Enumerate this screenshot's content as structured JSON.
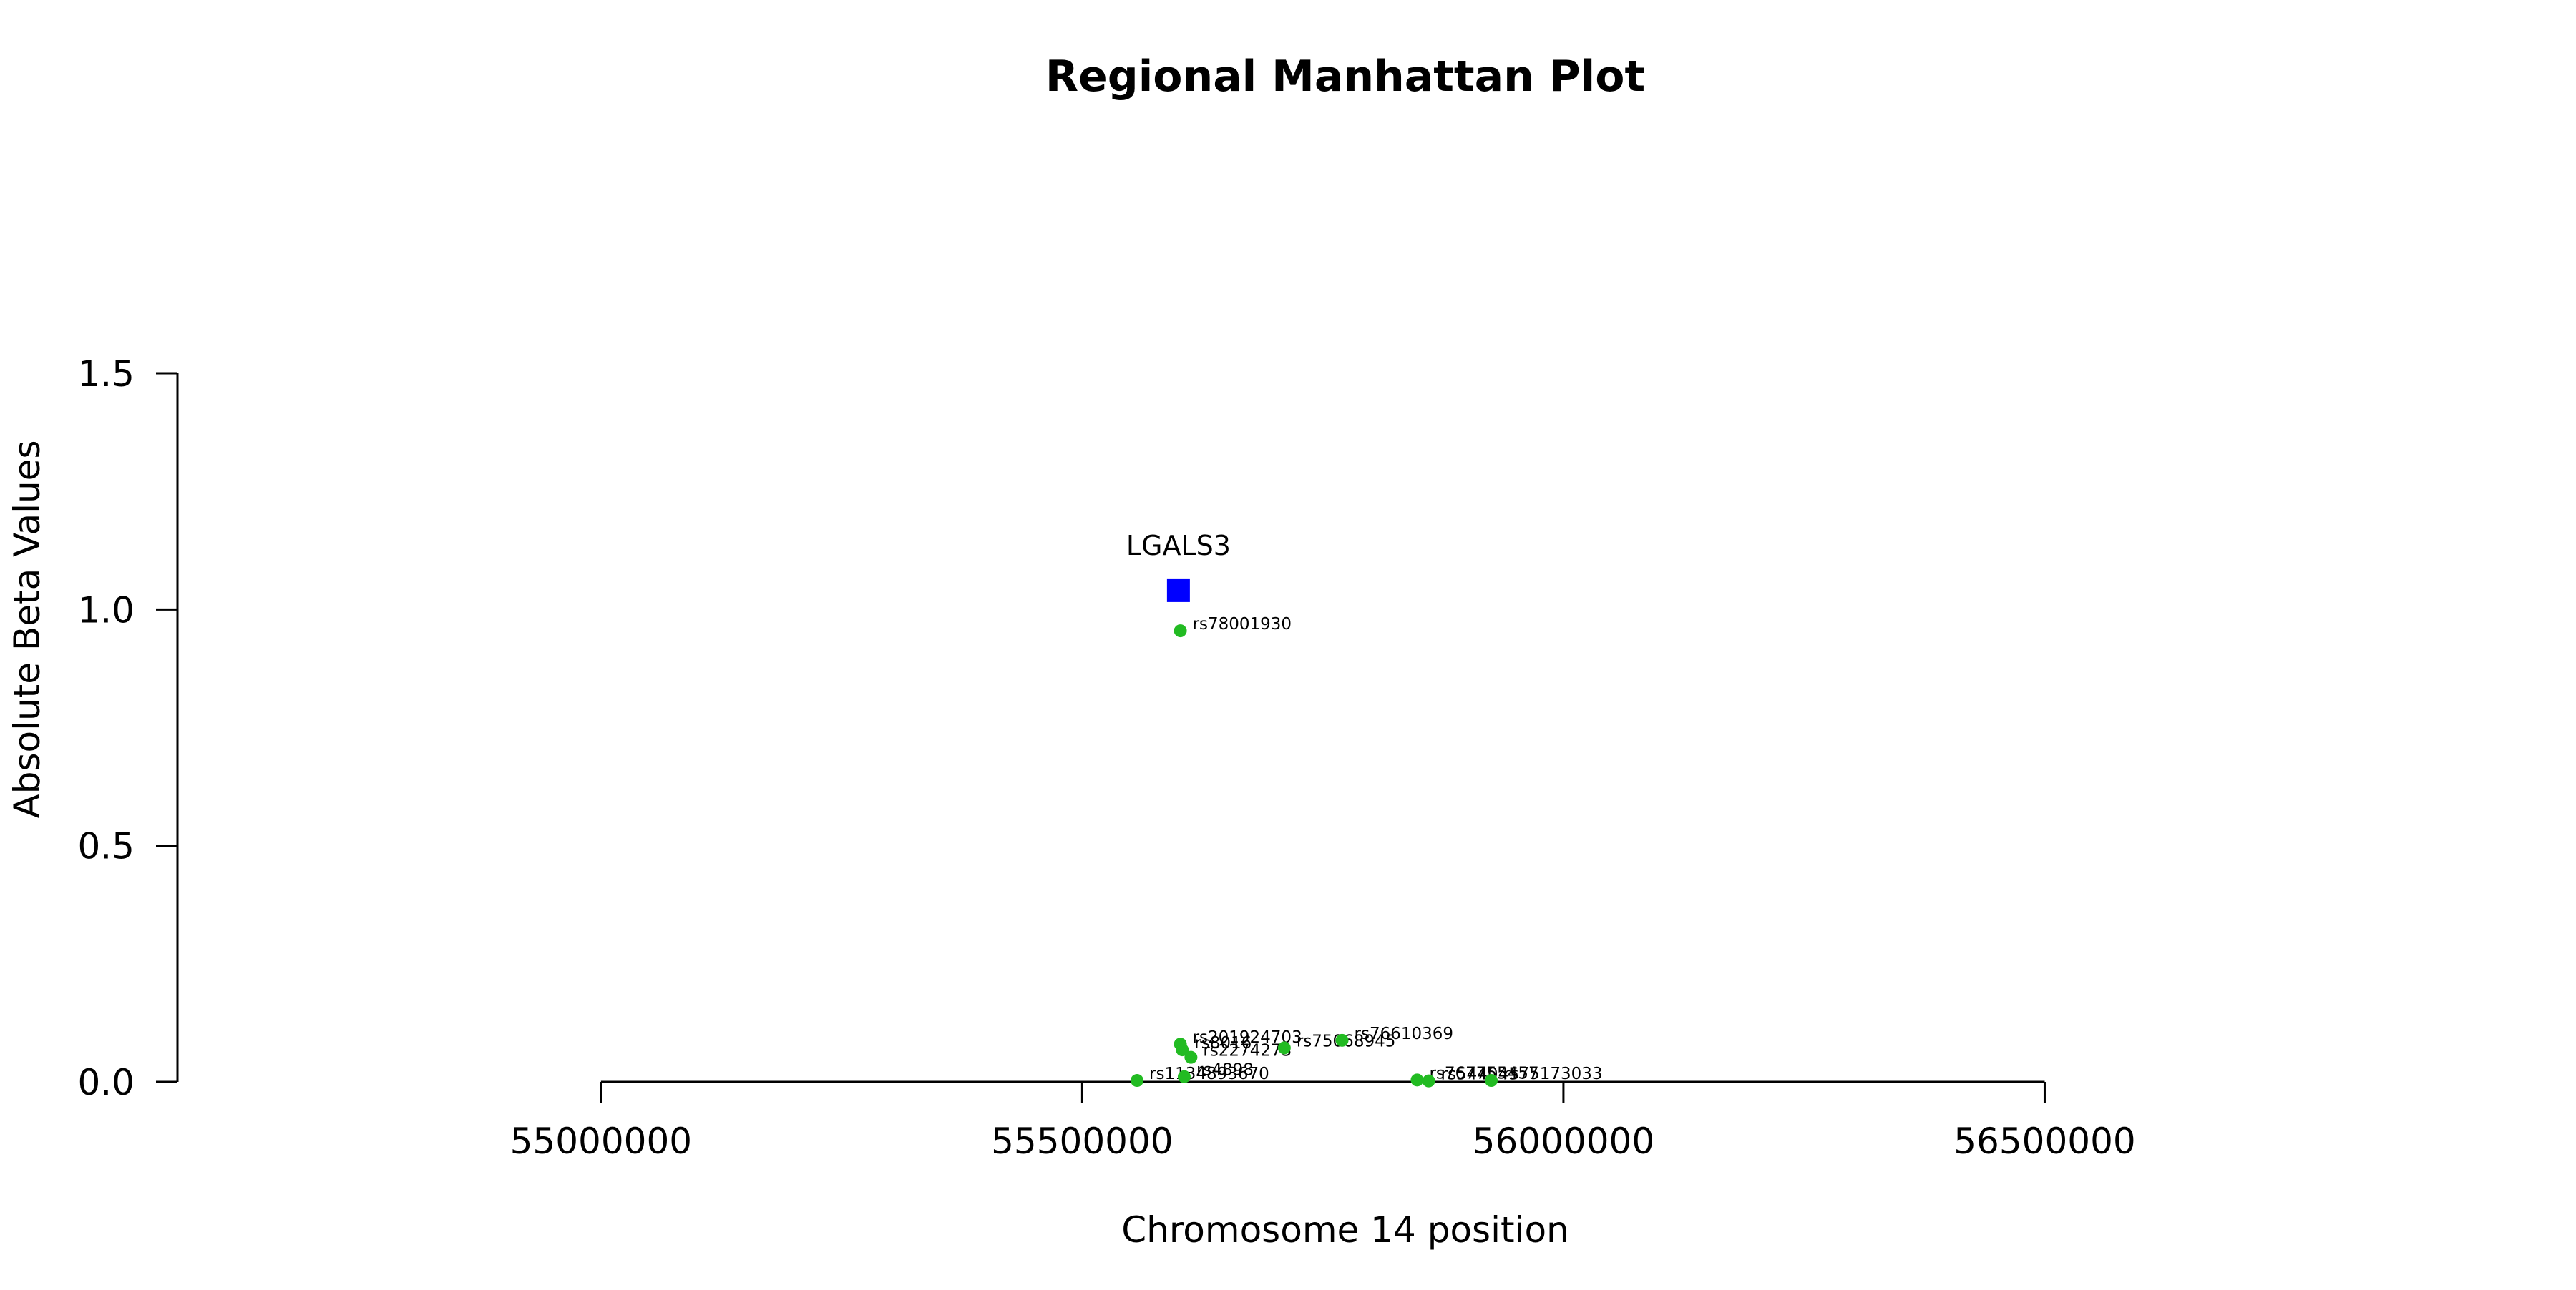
{
  "chart_data": {
    "type": "scatter",
    "title": "Regional Manhattan Plot",
    "xlabel": "Chromosome 14 position",
    "ylabel": "Absolute Beta Values",
    "xlim": [
      54560000,
      57000000
    ],
    "ylim": [
      0,
      1.5
    ],
    "x_axis_range": [
      55000000,
      56500000
    ],
    "xticks": [
      55000000,
      55500000,
      56000000,
      56500000
    ],
    "xtick_labels": [
      "55000000",
      "55500000",
      "56000000",
      "56500000"
    ],
    "yticks": [
      0,
      0.5,
      1.0,
      1.5
    ],
    "ytick_labels": [
      "0.0",
      "0.5",
      "1.0",
      "1.5"
    ],
    "grid": false,
    "colors": {
      "gene": "#0000ff",
      "snp": "#22bb22",
      "axis": "#000000"
    },
    "gene": {
      "name": "LGALS3",
      "x": 55600000,
      "y": 1.04,
      "marker": "square"
    },
    "snps": [
      {
        "label": "rs78001930",
        "x": 55602000,
        "y": 0.955
      },
      {
        "label": "rs201924703",
        "x": 55602000,
        "y": 0.08
      },
      {
        "label": "rs8016",
        "x": 55604000,
        "y": 0.068
      },
      {
        "label": "rs2274273",
        "x": 55613000,
        "y": 0.052
      },
      {
        "label": "rs75068945",
        "x": 55710000,
        "y": 0.072
      },
      {
        "label": "rs76610369",
        "x": 55770000,
        "y": 0.088
      },
      {
        "label": "rs1134893670",
        "x": 55557000,
        "y": 0.003
      },
      {
        "label": "rs4898",
        "x": 55606000,
        "y": 0.011
      },
      {
        "label": "rs767755457",
        "x": 55848000,
        "y": 0.004
      },
      {
        "label": "rs544045",
        "x": 55860000,
        "y": 0.002
      },
      {
        "label": "rs75173033",
        "x": 55925000,
        "y": 0.003
      }
    ]
  }
}
